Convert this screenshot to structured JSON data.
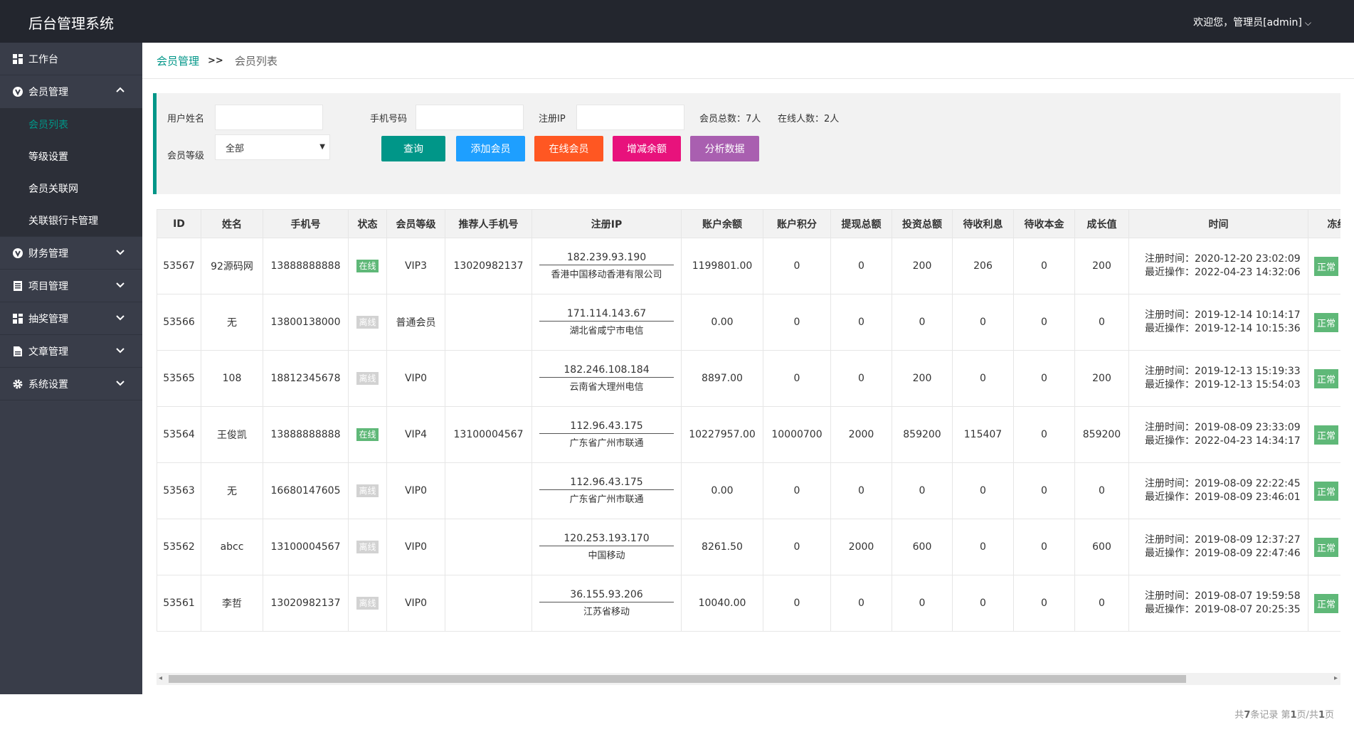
{
  "header": {
    "app_title": "后台管理系统",
    "user_greeting": "欢迎您，管理员[admin]"
  },
  "sidebar": {
    "items": [
      {
        "label": "工作台",
        "icon": "dashboard-icon"
      },
      {
        "label": "会员管理",
        "icon": "member-icon",
        "expanded": true,
        "children": [
          {
            "label": "会员列表",
            "active": true
          },
          {
            "label": "等级设置"
          },
          {
            "label": "会员关联网"
          },
          {
            "label": "关联银行卡管理"
          }
        ]
      },
      {
        "label": "财务管理",
        "icon": "finance-icon"
      },
      {
        "label": "项目管理",
        "icon": "project-icon"
      },
      {
        "label": "抽奖管理",
        "icon": "lottery-icon"
      },
      {
        "label": "文章管理",
        "icon": "article-icon"
      },
      {
        "label": "系统设置",
        "icon": "gear-icon"
      }
    ]
  },
  "breadcrumb": {
    "parent": "会员管理",
    "separator": ">>",
    "current": "会员列表"
  },
  "search": {
    "username_label": "用户姓名",
    "username_value": "",
    "phone_label": "手机号码",
    "phone_value": "",
    "ip_label": "注册IP",
    "ip_value": "",
    "level_label": "会员等级",
    "level_selected": "全部",
    "total_members": "会员总数：7人",
    "online_count": "在线人数：2人"
  },
  "buttons": {
    "query": {
      "label": "查询",
      "color": "#009688"
    },
    "add_member": {
      "label": "添加会员",
      "color": "#1E9FFF"
    },
    "online_members": {
      "label": "在线会员",
      "color": "#FF5722"
    },
    "adjust_balance": {
      "label": "增减余额",
      "color": "#E8127C"
    },
    "analyze": {
      "label": "分析数据",
      "color": "#A95FB0"
    }
  },
  "table": {
    "columns": [
      "ID",
      "姓名",
      "手机号",
      "状态",
      "会员等级",
      "推荐人手机号",
      "注册IP",
      "账户余额",
      "账户积分",
      "提现总额",
      "投资总额",
      "待收利息",
      "待收本金",
      "成长值",
      "时间",
      "冻结"
    ],
    "status_colors": {
      "在线": "#5FB878",
      "离线": "#d2d2d2"
    },
    "rows": [
      {
        "id": "53567",
        "name": "92源码网",
        "phone": "13888888888",
        "status": "在线",
        "level": "VIP3",
        "referrer": "13020982137",
        "ip": "182.239.93.190",
        "ip_location": "香港中国移动香港有限公司",
        "balance": "1199801.00",
        "points": "0",
        "withdraw": "0",
        "invest": "200",
        "interest": "206",
        "principal": "0",
        "growth": "200",
        "reg_time": "注册时间：2020-12-20 23:02:09",
        "last_op": "最近操作：2022-04-23 14:32:06",
        "freeze": "正常"
      },
      {
        "id": "53566",
        "name": "无",
        "phone": "13800138000",
        "status": "离线",
        "level": "普通会员",
        "referrer": "",
        "ip": "171.114.143.67",
        "ip_location": "湖北省咸宁市电信",
        "balance": "0.00",
        "points": "0",
        "withdraw": "0",
        "invest": "0",
        "interest": "0",
        "principal": "0",
        "growth": "0",
        "reg_time": "注册时间：2019-12-14 10:14:17",
        "last_op": "最近操作：2019-12-14 10:15:36",
        "freeze": "正常"
      },
      {
        "id": "53565",
        "name": "108",
        "phone": "18812345678",
        "status": "离线",
        "level": "VIP0",
        "referrer": "",
        "ip": "182.246.108.184",
        "ip_location": "云南省大理州电信",
        "balance": "8897.00",
        "points": "0",
        "withdraw": "0",
        "invest": "200",
        "interest": "0",
        "principal": "0",
        "growth": "200",
        "reg_time": "注册时间：2019-12-13 15:19:33",
        "last_op": "最近操作：2019-12-13 15:54:03",
        "freeze": "正常"
      },
      {
        "id": "53564",
        "name": "王俊凯",
        "phone": "13888888888",
        "status": "在线",
        "level": "VIP4",
        "referrer": "13100004567",
        "ip": "112.96.43.175",
        "ip_location": "广东省广州市联通",
        "balance": "10227957.00",
        "points": "10000700",
        "withdraw": "2000",
        "invest": "859200",
        "interest": "115407",
        "principal": "0",
        "growth": "859200",
        "reg_time": "注册时间：2019-08-09 23:33:09",
        "last_op": "最近操作：2022-04-23 14:34:17",
        "freeze": "正常"
      },
      {
        "id": "53563",
        "name": "无",
        "phone": "16680147605",
        "status": "离线",
        "level": "VIP0",
        "referrer": "",
        "ip": "112.96.43.175",
        "ip_location": "广东省广州市联通",
        "balance": "0.00",
        "points": "0",
        "withdraw": "0",
        "invest": "0",
        "interest": "0",
        "principal": "0",
        "growth": "0",
        "reg_time": "注册时间：2019-08-09 22:22:45",
        "last_op": "最近操作：2019-08-09 23:46:01",
        "freeze": "正常"
      },
      {
        "id": "53562",
        "name": "abcc",
        "phone": "13100004567",
        "status": "离线",
        "level": "VIP0",
        "referrer": "",
        "ip": "120.253.193.170",
        "ip_location": "中国移动",
        "balance": "8261.50",
        "points": "0",
        "withdraw": "2000",
        "invest": "600",
        "interest": "0",
        "principal": "0",
        "growth": "600",
        "reg_time": "注册时间：2019-08-09 12:37:27",
        "last_op": "最近操作：2019-08-09 22:47:46",
        "freeze": "正常"
      },
      {
        "id": "53561",
        "name": "李哲",
        "phone": "13020982137",
        "status": "离线",
        "level": "VIP0",
        "referrer": "",
        "ip": "36.155.93.206",
        "ip_location": "江苏省移动",
        "balance": "10040.00",
        "points": "0",
        "withdraw": "0",
        "invest": "0",
        "interest": "0",
        "principal": "0",
        "growth": "0",
        "reg_time": "注册时间：2019-08-07 19:59:58",
        "last_op": "最近操作：2019-08-07 20:25:35",
        "freeze": "正常"
      }
    ]
  },
  "pagination": {
    "prefix": "共",
    "total": "7",
    "records_suffix": "条记录 第",
    "page": "1",
    "mid": "页/共",
    "pages": "1",
    "suffix": "页"
  }
}
